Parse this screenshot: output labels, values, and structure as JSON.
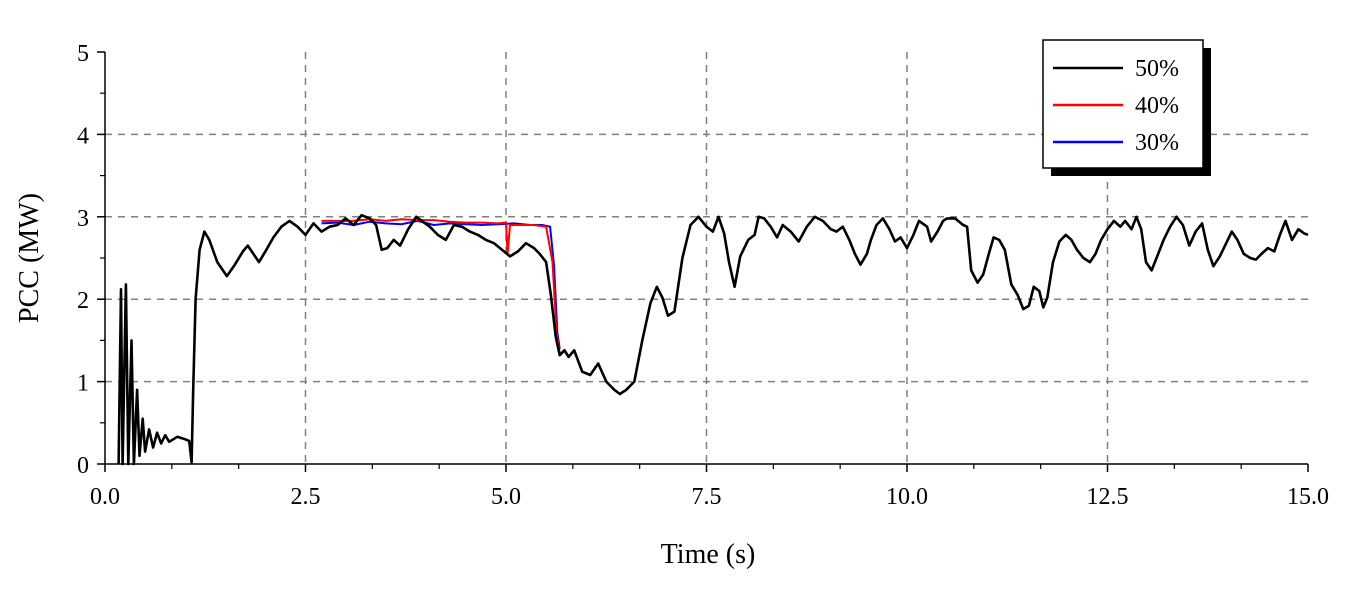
{
  "chart_data": {
    "type": "line",
    "xlabel": "Time (s)",
    "ylabel": "PCC (MW)",
    "xlim": [
      0,
      15
    ],
    "ylim": [
      0,
      5
    ],
    "x_ticks": [
      "0.0",
      "2.5",
      "5.0",
      "7.5",
      "10.0",
      "12.5",
      "15.0"
    ],
    "y_ticks": [
      "0",
      "1",
      "2",
      "3",
      "4",
      "5"
    ],
    "grid": true,
    "legend_position": "top-right",
    "series": [
      {
        "name": "50%",
        "color": "#000000",
        "points": [
          [
            0.17,
            0
          ],
          [
            0.2,
            2.12
          ],
          [
            0.22,
            0
          ],
          [
            0.26,
            2.18
          ],
          [
            0.29,
            0
          ],
          [
            0.33,
            1.5
          ],
          [
            0.36,
            0
          ],
          [
            0.4,
            0.9
          ],
          [
            0.43,
            0.1
          ],
          [
            0.47,
            0.55
          ],
          [
            0.5,
            0.15
          ],
          [
            0.55,
            0.42
          ],
          [
            0.6,
            0.2
          ],
          [
            0.65,
            0.38
          ],
          [
            0.7,
            0.25
          ],
          [
            0.75,
            0.35
          ],
          [
            0.8,
            0.27
          ],
          [
            0.9,
            0.33
          ],
          [
            1.0,
            0.3
          ],
          [
            1.05,
            0.28
          ],
          [
            1.08,
            0.02
          ],
          [
            1.1,
            0.9
          ],
          [
            1.13,
            2.0
          ],
          [
            1.18,
            2.6
          ],
          [
            1.24,
            2.82
          ],
          [
            1.3,
            2.72
          ],
          [
            1.4,
            2.45
          ],
          [
            1.52,
            2.28
          ],
          [
            1.62,
            2.42
          ],
          [
            1.72,
            2.58
          ],
          [
            1.78,
            2.65
          ],
          [
            1.85,
            2.55
          ],
          [
            1.92,
            2.45
          ],
          [
            2.0,
            2.58
          ],
          [
            2.1,
            2.75
          ],
          [
            2.2,
            2.88
          ],
          [
            2.3,
            2.95
          ],
          [
            2.4,
            2.88
          ],
          [
            2.5,
            2.78
          ],
          [
            2.6,
            2.92
          ],
          [
            2.7,
            2.82
          ],
          [
            2.8,
            2.88
          ],
          [
            2.9,
            2.9
          ],
          [
            3.0,
            2.98
          ],
          [
            3.1,
            2.9
          ],
          [
            3.2,
            3.02
          ],
          [
            3.3,
            2.98
          ],
          [
            3.38,
            2.9
          ],
          [
            3.45,
            2.6
          ],
          [
            3.52,
            2.62
          ],
          [
            3.6,
            2.72
          ],
          [
            3.68,
            2.65
          ],
          [
            3.78,
            2.85
          ],
          [
            3.88,
            3.0
          ],
          [
            3.95,
            2.95
          ],
          [
            4.05,
            2.88
          ],
          [
            4.15,
            2.78
          ],
          [
            4.25,
            2.72
          ],
          [
            4.35,
            2.9
          ],
          [
            4.45,
            2.88
          ],
          [
            4.55,
            2.82
          ],
          [
            4.65,
            2.78
          ],
          [
            4.75,
            2.72
          ],
          [
            4.85,
            2.68
          ],
          [
            4.95,
            2.6
          ],
          [
            5.05,
            2.52
          ],
          [
            5.15,
            2.58
          ],
          [
            5.25,
            2.68
          ],
          [
            5.35,
            2.62
          ],
          [
            5.42,
            2.55
          ],
          [
            5.5,
            2.45
          ],
          [
            5.56,
            2.05
          ],
          [
            5.62,
            1.55
          ],
          [
            5.67,
            1.32
          ],
          [
            5.73,
            1.38
          ],
          [
            5.78,
            1.3
          ],
          [
            5.85,
            1.38
          ],
          [
            5.95,
            1.12
          ],
          [
            6.05,
            1.08
          ],
          [
            6.15,
            1.22
          ],
          [
            6.25,
            1.0
          ],
          [
            6.35,
            0.9
          ],
          [
            6.42,
            0.85
          ],
          [
            6.5,
            0.9
          ],
          [
            6.6,
            1.0
          ],
          [
            6.7,
            1.5
          ],
          [
            6.8,
            1.95
          ],
          [
            6.88,
            2.15
          ],
          [
            6.95,
            2.02
          ],
          [
            7.02,
            1.8
          ],
          [
            7.1,
            1.85
          ],
          [
            7.2,
            2.5
          ],
          [
            7.3,
            2.9
          ],
          [
            7.4,
            3.0
          ],
          [
            7.5,
            2.88
          ],
          [
            7.58,
            2.82
          ],
          [
            7.65,
            3.0
          ],
          [
            7.72,
            2.8
          ],
          [
            7.78,
            2.45
          ],
          [
            7.85,
            2.15
          ],
          [
            7.92,
            2.52
          ],
          [
            8.02,
            2.72
          ],
          [
            8.1,
            2.78
          ],
          [
            8.15,
            3.0
          ],
          [
            8.22,
            2.98
          ],
          [
            8.3,
            2.88
          ],
          [
            8.38,
            2.75
          ],
          [
            8.45,
            2.9
          ],
          [
            8.55,
            2.82
          ],
          [
            8.65,
            2.7
          ],
          [
            8.75,
            2.88
          ],
          [
            8.85,
            3.0
          ],
          [
            8.95,
            2.95
          ],
          [
            9.05,
            2.85
          ],
          [
            9.12,
            2.82
          ],
          [
            9.2,
            2.88
          ],
          [
            9.28,
            2.72
          ],
          [
            9.35,
            2.55
          ],
          [
            9.42,
            2.42
          ],
          [
            9.5,
            2.55
          ],
          [
            9.55,
            2.72
          ],
          [
            9.62,
            2.9
          ],
          [
            9.7,
            2.98
          ],
          [
            9.78,
            2.85
          ],
          [
            9.85,
            2.7
          ],
          [
            9.92,
            2.75
          ],
          [
            10.0,
            2.62
          ],
          [
            10.08,
            2.78
          ],
          [
            10.15,
            2.95
          ],
          [
            10.25,
            2.88
          ],
          [
            10.3,
            2.7
          ],
          [
            10.38,
            2.82
          ],
          [
            10.45,
            2.95
          ],
          [
            10.5,
            2.98
          ],
          [
            10.6,
            2.98
          ],
          [
            10.7,
            2.9
          ],
          [
            10.75,
            2.88
          ],
          [
            10.8,
            2.35
          ],
          [
            10.88,
            2.2
          ],
          [
            10.95,
            2.3
          ],
          [
            11.02,
            2.55
          ],
          [
            11.08,
            2.75
          ],
          [
            11.15,
            2.72
          ],
          [
            11.22,
            2.6
          ],
          [
            11.3,
            2.18
          ],
          [
            11.38,
            2.05
          ],
          [
            11.45,
            1.88
          ],
          [
            11.52,
            1.92
          ],
          [
            11.58,
            2.15
          ],
          [
            11.65,
            2.1
          ],
          [
            11.7,
            1.9
          ],
          [
            11.75,
            2.02
          ],
          [
            11.82,
            2.45
          ],
          [
            11.9,
            2.7
          ],
          [
            11.98,
            2.78
          ],
          [
            12.05,
            2.72
          ],
          [
            12.12,
            2.6
          ],
          [
            12.2,
            2.5
          ],
          [
            12.28,
            2.45
          ],
          [
            12.35,
            2.55
          ],
          [
            12.42,
            2.72
          ],
          [
            12.5,
            2.85
          ],
          [
            12.58,
            2.95
          ],
          [
            12.66,
            2.88
          ],
          [
            12.72,
            2.95
          ],
          [
            12.8,
            2.85
          ],
          [
            12.86,
            3.0
          ],
          [
            12.92,
            2.85
          ],
          [
            12.98,
            2.45
          ],
          [
            13.05,
            2.35
          ],
          [
            13.12,
            2.52
          ],
          [
            13.2,
            2.72
          ],
          [
            13.28,
            2.88
          ],
          [
            13.36,
            3.0
          ],
          [
            13.44,
            2.9
          ],
          [
            13.52,
            2.65
          ],
          [
            13.6,
            2.82
          ],
          [
            13.68,
            2.92
          ],
          [
            13.75,
            2.6
          ],
          [
            13.82,
            2.4
          ],
          [
            13.9,
            2.52
          ],
          [
            13.98,
            2.68
          ],
          [
            14.05,
            2.82
          ],
          [
            14.12,
            2.72
          ],
          [
            14.2,
            2.55
          ],
          [
            14.28,
            2.5
          ],
          [
            14.35,
            2.48
          ],
          [
            14.42,
            2.55
          ],
          [
            14.5,
            2.62
          ],
          [
            14.58,
            2.58
          ],
          [
            14.65,
            2.78
          ],
          [
            14.72,
            2.95
          ],
          [
            14.8,
            2.72
          ],
          [
            14.88,
            2.85
          ],
          [
            14.95,
            2.8
          ],
          [
            15.0,
            2.78
          ]
        ]
      },
      {
        "name": "40%",
        "color": "#ff0000",
        "points": [
          [
            2.7,
            2.95
          ],
          [
            2.9,
            2.95
          ],
          [
            3.1,
            2.95
          ],
          [
            3.3,
            2.97
          ],
          [
            3.5,
            2.95
          ],
          [
            3.7,
            2.97
          ],
          [
            3.9,
            2.96
          ],
          [
            4.1,
            2.96
          ],
          [
            4.3,
            2.94
          ],
          [
            4.5,
            2.93
          ],
          [
            4.7,
            2.93
          ],
          [
            4.9,
            2.92
          ],
          [
            5.0,
            2.93
          ],
          [
            5.02,
            2.55
          ],
          [
            5.05,
            2.9
          ],
          [
            5.2,
            2.9
          ],
          [
            5.35,
            2.9
          ],
          [
            5.5,
            2.88
          ],
          [
            5.58,
            2.45
          ],
          [
            5.63,
            1.6
          ],
          [
            5.67,
            1.35
          ]
        ]
      },
      {
        "name": "30%",
        "color": "#0000ff",
        "points": [
          [
            2.7,
            2.92
          ],
          [
            2.9,
            2.93
          ],
          [
            3.1,
            2.9
          ],
          [
            3.3,
            2.94
          ],
          [
            3.5,
            2.92
          ],
          [
            3.7,
            2.91
          ],
          [
            3.9,
            2.95
          ],
          [
            4.1,
            2.9
          ],
          [
            4.3,
            2.92
          ],
          [
            4.5,
            2.91
          ],
          [
            4.7,
            2.9
          ],
          [
            4.9,
            2.91
          ],
          [
            5.1,
            2.92
          ],
          [
            5.3,
            2.9
          ],
          [
            5.45,
            2.9
          ],
          [
            5.55,
            2.88
          ],
          [
            5.6,
            2.4
          ],
          [
            5.64,
            1.6
          ],
          [
            5.67,
            1.4
          ]
        ]
      }
    ]
  }
}
